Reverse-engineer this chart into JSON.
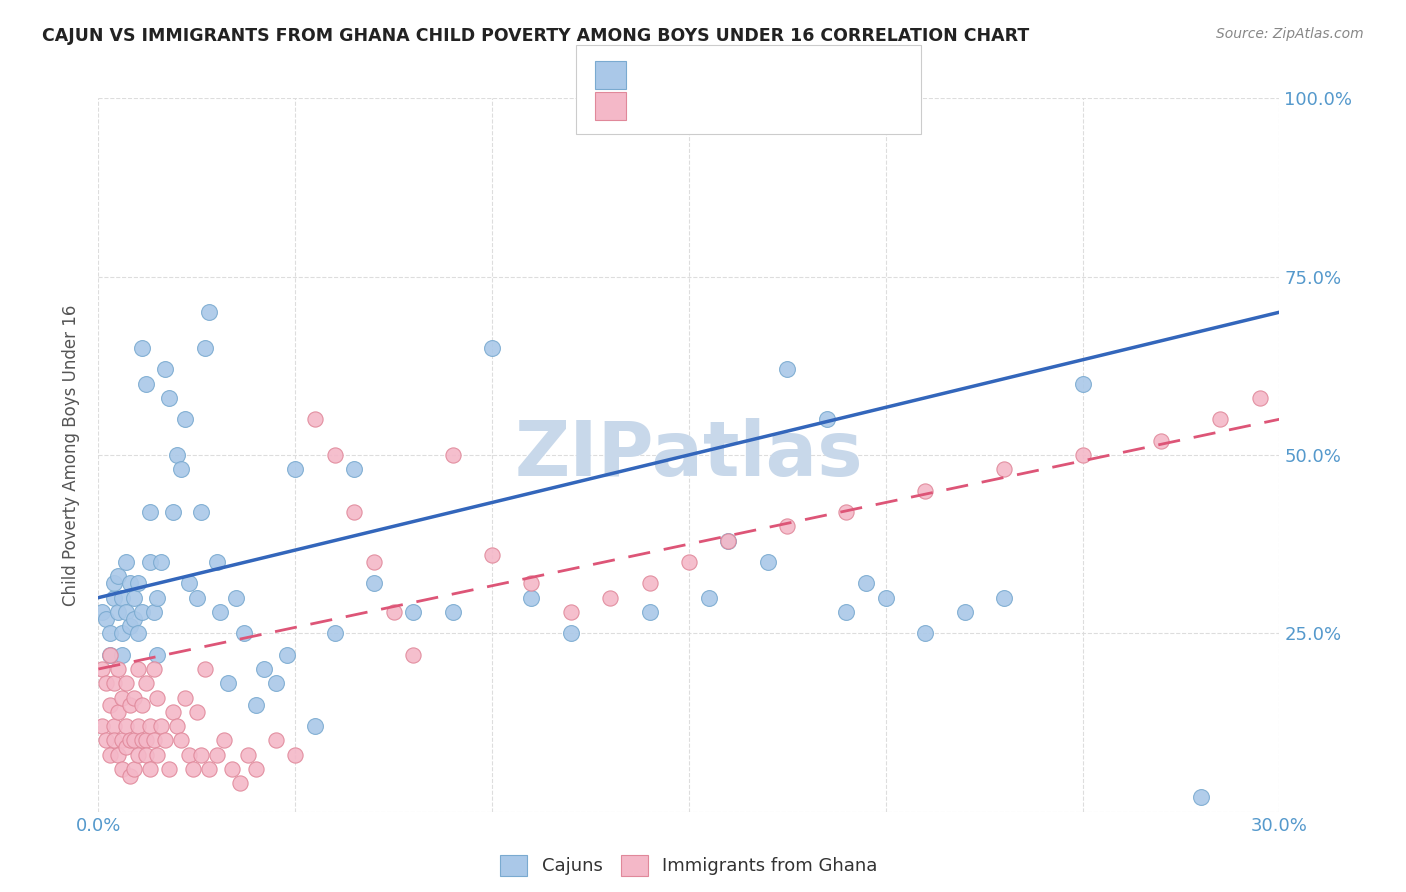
{
  "title": "CAJUN VS IMMIGRANTS FROM GHANA CHILD POVERTY AMONG BOYS UNDER 16 CORRELATION CHART",
  "source": "Source: ZipAtlas.com",
  "ylabel": "Child Poverty Among Boys Under 16",
  "xlim": [
    0.0,
    0.3
  ],
  "ylim": [
    0.0,
    1.0
  ],
  "cajun_color": "#aac8e8",
  "cajun_edge": "#7aaad0",
  "ghana_color": "#f4b8c8",
  "ghana_edge": "#e0889a",
  "cajun_line_color": "#3366bb",
  "ghana_line_color": "#dd5577",
  "watermark": "ZIPatlas",
  "watermark_color": "#c8d8ea",
  "cajun_line_x0": 0.0,
  "cajun_line_y0": 0.3,
  "cajun_line_x1": 0.3,
  "cajun_line_y1": 0.7,
  "ghana_line_x0": 0.0,
  "ghana_line_y0": 0.2,
  "ghana_line_x1": 0.3,
  "ghana_line_y1": 0.55,
  "cajun_points_x": [
    0.001,
    0.002,
    0.003,
    0.003,
    0.004,
    0.004,
    0.005,
    0.005,
    0.006,
    0.006,
    0.006,
    0.007,
    0.007,
    0.008,
    0.008,
    0.009,
    0.009,
    0.01,
    0.01,
    0.011,
    0.011,
    0.012,
    0.013,
    0.013,
    0.014,
    0.015,
    0.015,
    0.016,
    0.017,
    0.018,
    0.019,
    0.02,
    0.021,
    0.022,
    0.023,
    0.025,
    0.026,
    0.027,
    0.028,
    0.03,
    0.031,
    0.033,
    0.035,
    0.037,
    0.04,
    0.042,
    0.045,
    0.048,
    0.05,
    0.055,
    0.06,
    0.065,
    0.07,
    0.08,
    0.09,
    0.1,
    0.11,
    0.12,
    0.14,
    0.155,
    0.16,
    0.17,
    0.175,
    0.185,
    0.19,
    0.195,
    0.2,
    0.21,
    0.22,
    0.23,
    0.25,
    0.28
  ],
  "cajun_points_y": [
    0.28,
    0.27,
    0.25,
    0.22,
    0.3,
    0.32,
    0.28,
    0.33,
    0.25,
    0.3,
    0.22,
    0.35,
    0.28,
    0.26,
    0.32,
    0.3,
    0.27,
    0.25,
    0.32,
    0.28,
    0.65,
    0.6,
    0.35,
    0.42,
    0.28,
    0.22,
    0.3,
    0.35,
    0.62,
    0.58,
    0.42,
    0.5,
    0.48,
    0.55,
    0.32,
    0.3,
    0.42,
    0.65,
    0.7,
    0.35,
    0.28,
    0.18,
    0.3,
    0.25,
    0.15,
    0.2,
    0.18,
    0.22,
    0.48,
    0.12,
    0.25,
    0.48,
    0.32,
    0.28,
    0.28,
    0.65,
    0.3,
    0.25,
    0.28,
    0.3,
    0.38,
    0.35,
    0.62,
    0.55,
    0.28,
    0.32,
    0.3,
    0.25,
    0.28,
    0.3,
    0.6,
    0.02
  ],
  "ghana_points_x": [
    0.001,
    0.001,
    0.002,
    0.002,
    0.003,
    0.003,
    0.003,
    0.004,
    0.004,
    0.004,
    0.005,
    0.005,
    0.005,
    0.006,
    0.006,
    0.006,
    0.007,
    0.007,
    0.007,
    0.008,
    0.008,
    0.008,
    0.009,
    0.009,
    0.009,
    0.01,
    0.01,
    0.01,
    0.011,
    0.011,
    0.012,
    0.012,
    0.012,
    0.013,
    0.013,
    0.014,
    0.014,
    0.015,
    0.015,
    0.016,
    0.017,
    0.018,
    0.019,
    0.02,
    0.021,
    0.022,
    0.023,
    0.024,
    0.025,
    0.026,
    0.027,
    0.028,
    0.03,
    0.032,
    0.034,
    0.036,
    0.038,
    0.04,
    0.045,
    0.05,
    0.055,
    0.06,
    0.065,
    0.07,
    0.075,
    0.08,
    0.09,
    0.1,
    0.11,
    0.12,
    0.13,
    0.14,
    0.15,
    0.16,
    0.175,
    0.19,
    0.21,
    0.23,
    0.25,
    0.27,
    0.285,
    0.295
  ],
  "ghana_points_y": [
    0.2,
    0.12,
    0.18,
    0.1,
    0.15,
    0.08,
    0.22,
    0.12,
    0.18,
    0.1,
    0.14,
    0.08,
    0.2,
    0.1,
    0.16,
    0.06,
    0.12,
    0.18,
    0.09,
    0.1,
    0.15,
    0.05,
    0.1,
    0.16,
    0.06,
    0.12,
    0.2,
    0.08,
    0.1,
    0.15,
    0.1,
    0.18,
    0.08,
    0.12,
    0.06,
    0.2,
    0.1,
    0.08,
    0.16,
    0.12,
    0.1,
    0.06,
    0.14,
    0.12,
    0.1,
    0.16,
    0.08,
    0.06,
    0.14,
    0.08,
    0.2,
    0.06,
    0.08,
    0.1,
    0.06,
    0.04,
    0.08,
    0.06,
    0.1,
    0.08,
    0.55,
    0.5,
    0.42,
    0.35,
    0.28,
    0.22,
    0.5,
    0.36,
    0.32,
    0.28,
    0.3,
    0.32,
    0.35,
    0.38,
    0.4,
    0.42,
    0.45,
    0.48,
    0.5,
    0.52,
    0.55,
    0.58
  ]
}
